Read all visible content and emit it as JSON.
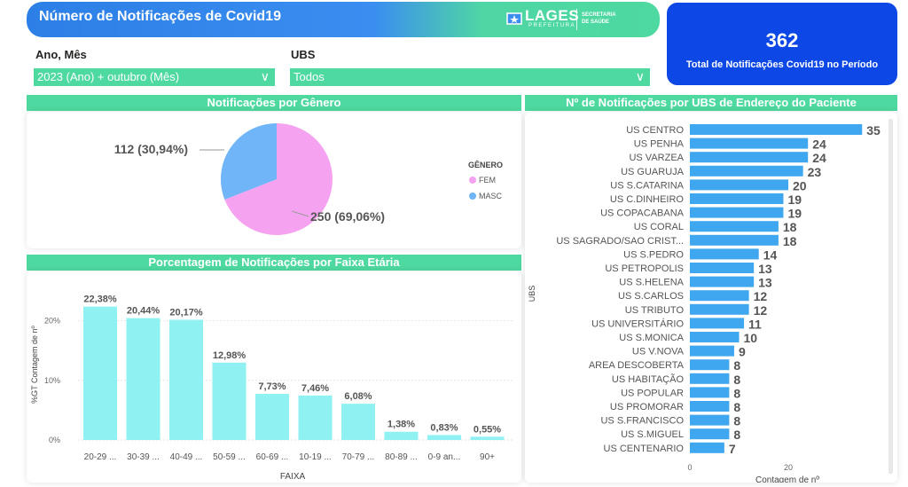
{
  "header": {
    "title": "Número de Notificações de Covid19",
    "logo_word": "LAGES",
    "logo_sub": "PREFEITURA",
    "logo_right": [
      "SECRETARIA",
      "DE SAÚDE"
    ]
  },
  "kpi": {
    "value": "362",
    "label": "Total de Notificações Covid19 no Período"
  },
  "filters": {
    "period_label": "Ano, Mês",
    "period_value": "2023 (Ano) + outubro (Mês)",
    "ubs_label": "UBS",
    "ubs_value": "Todos"
  },
  "sections": {
    "gender_title": "Notificações por Gênero",
    "age_title": "Porcentagem de Notificações por Faixa Etária",
    "ubs_title": "Nº de Notificações por UBS de Endereço do Paciente"
  },
  "colors": {
    "accent": "#4ed9a0",
    "kpi_bg": "#0d47e6",
    "bar_age": "#8ff1f1",
    "bar_ubs": "#3fa6f0",
    "fem": "#f5a3f0",
    "masc": "#6fb5f7"
  },
  "chart_data": [
    {
      "type": "pie",
      "legend_title": "GÊNERO",
      "legend_position": "right",
      "slices": [
        {
          "name": "FEM",
          "value": 250,
          "label": "250 (69,06%)"
        },
        {
          "name": "MASC",
          "value": 112,
          "label": "112 (30,94%)"
        }
      ]
    },
    {
      "type": "bar",
      "xlabel": "FAIXA",
      "ylabel": "%GT Contagem de nº",
      "ylim": [
        0,
        25
      ],
      "yticks": [
        "0%",
        "10%",
        "20%"
      ],
      "categories": [
        "20-29 ...",
        "30-39 ...",
        "40-49 ...",
        "50-59 ...",
        "60-69 ...",
        "10-19 ...",
        "70-79 ...",
        "80-89 ...",
        "0-9 an...",
        "90+"
      ],
      "values": [
        22.38,
        20.44,
        20.17,
        12.98,
        7.73,
        7.46,
        6.08,
        1.38,
        0.83,
        0.55
      ],
      "labels": [
        "22,38%",
        "20,44%",
        "20,17%",
        "12,98%",
        "7,73%",
        "7,46%",
        "6,08%",
        "1,38%",
        "0,83%",
        "0,55%"
      ]
    },
    {
      "type": "bar",
      "orientation": "horizontal",
      "xlabel": "Contagem de nº",
      "ylabel": "UBS",
      "xticks": [
        "0",
        "20"
      ],
      "categories": [
        "US CENTRO",
        "US PENHA",
        "US VARZEA",
        "US GUARUJA",
        "US S.CATARINA",
        "US C.DINHEIRO",
        "US COPACABANA",
        "US CORAL",
        "US SAGRADO/SAO CRIST...",
        "US S.PEDRO",
        "US PETROPOLIS",
        "US S.HELENA",
        "US S.CARLOS",
        "US TRIBUTO",
        "US UNIVERSITÁRIO",
        "US S.MONICA",
        "US V.NOVA",
        "AREA DESCOBERTA",
        "US HABITAÇÃO",
        "US POPULAR",
        "US PROMORAR",
        "US S.FRANCISCO",
        "US S.MIGUEL",
        "US CENTENARIO"
      ],
      "values": [
        35,
        24,
        24,
        23,
        20,
        19,
        19,
        18,
        18,
        14,
        13,
        13,
        12,
        12,
        11,
        10,
        9,
        8,
        8,
        8,
        8,
        8,
        8,
        7
      ]
    }
  ]
}
